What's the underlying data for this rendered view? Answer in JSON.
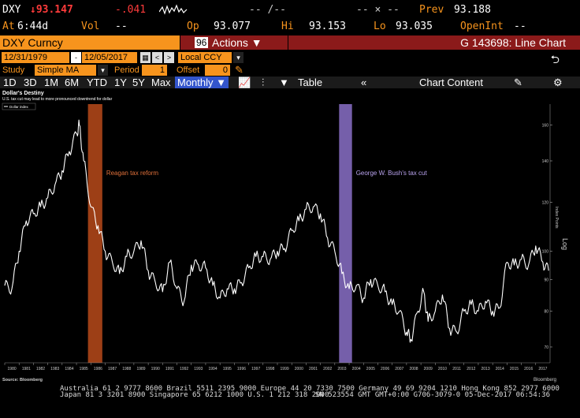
{
  "header": {
    "ticker": "DXY",
    "price": "↓93.147",
    "change": "-.041",
    "vol_label": "Vol",
    "vol_value": "--",
    "bid": "-- /--",
    "ask": "-- × --",
    "prev_label": "Prev",
    "prev_value": "93.188",
    "at_label": "At",
    "at_value": "6:44d",
    "op_label": "Op",
    "op_value": "93.077",
    "hi_label": "Hi",
    "hi_value": "93.153",
    "lo_label": "Lo",
    "lo_value": "93.035",
    "openint_label": "OpenInt",
    "openint_value": "--"
  },
  "titlebar": {
    "security": "DXY Curncy",
    "actions_num": "96",
    "actions_label": "Actions ▼",
    "chart_id": "G 143698: Line Chart"
  },
  "dates": {
    "start": "12/31/1979",
    "end": "12/05/2017",
    "currency": "Local CCY"
  },
  "study": {
    "study_label": "Study",
    "study_value": "Simple MA",
    "period_label": "Period",
    "period_value": "1",
    "offset_label": "Offset",
    "offset_value": "0"
  },
  "toolbar": {
    "ranges": [
      "1D",
      "3D",
      "1M",
      "6M",
      "YTD",
      "1Y",
      "5Y",
      "Max"
    ],
    "freq": "Monthly ▼",
    "table": "Table",
    "chart_content": "Chart Content"
  },
  "chart_data": {
    "type": "line",
    "title": "Dollar's Destiny",
    "subtitle": "U.S. tax cut may lead to more pronounced downtrend for dollar",
    "legend": "Dollar index",
    "ylabel": "Index Points",
    "scale_label": "Log",
    "source": "Source: Bloomberg",
    "ylim": [
      66,
      166
    ],
    "yticks": [
      70,
      80,
      90,
      100,
      120,
      140,
      160
    ],
    "xlim": [
      1980,
      2018
    ],
    "xticks": [
      "1980",
      "1981",
      "1982",
      "1983",
      "1984",
      "1985",
      "1986",
      "1987",
      "1988",
      "1989",
      "1990",
      "1991",
      "1992",
      "1993",
      "1994",
      "1995",
      "1996",
      "1997",
      "1998",
      "1999",
      "2000",
      "2001",
      "2002",
      "2003",
      "2004",
      "2005",
      "2006",
      "2007",
      "2008",
      "2009",
      "2010",
      "2011",
      "2012",
      "2013",
      "2014",
      "2015",
      "2016",
      "2017"
    ],
    "annotations": [
      {
        "label": "Reagan tax reform",
        "x_start": 1985.8,
        "x_end": 1986.8,
        "color": "#b84a1a"
      },
      {
        "label": "George W. Bush's tax cut",
        "x_start": 2003.3,
        "x_end": 2004.2,
        "color": "#8a70c8"
      }
    ],
    "series": [
      {
        "x": [
          1980.0,
          1980.5,
          1981.0,
          1981.5,
          1982.0,
          1982.5,
          1983.0,
          1983.5,
          1984.0,
          1984.5,
          1985.0,
          1985.2,
          1985.5,
          1986.0,
          1986.5,
          1987.0,
          1987.5,
          1988.0,
          1988.5,
          1989.0,
          1989.5,
          1990.0,
          1990.5,
          1991.0,
          1991.5,
          1992.0,
          1992.5,
          1993.0,
          1993.5,
          1994.0,
          1994.5,
          1995.0,
          1995.5,
          1996.0,
          1996.5,
          1997.0,
          1997.5,
          1998.0,
          1998.5,
          1999.0,
          1999.5,
          2000.0,
          2000.5,
          2001.0,
          2001.5,
          2002.0,
          2002.5,
          2003.0,
          2003.5,
          2004.0,
          2004.5,
          2005.0,
          2005.5,
          2006.0,
          2006.5,
          2007.0,
          2007.5,
          2008.0,
          2008.3,
          2008.8,
          2009.2,
          2009.5,
          2010.0,
          2010.5,
          2011.0,
          2011.5,
          2012.0,
          2012.5,
          2013.0,
          2013.5,
          2014.0,
          2014.5,
          2015.0,
          2015.5,
          2016.0,
          2016.5,
          2017.0,
          2017.5,
          2017.9
        ],
        "y": [
          88,
          87,
          100,
          112,
          115,
          118,
          122,
          128,
          135,
          145,
          155,
          160,
          140,
          118,
          110,
          100,
          96,
          92,
          98,
          100,
          104,
          93,
          89,
          86,
          96,
          87,
          83,
          95,
          95,
          94,
          88,
          84,
          87,
          87,
          89,
          94,
          98,
          98,
          97,
          100,
          101,
          108,
          112,
          117,
          118,
          115,
          105,
          100,
          92,
          87,
          88,
          84,
          90,
          88,
          86,
          82,
          80,
          74,
          72,
          80,
          86,
          77,
          80,
          85,
          75,
          74,
          80,
          82,
          80,
          83,
          80,
          81,
          96,
          95,
          97,
          95,
          102,
          96,
          93
        ]
      }
    ]
  },
  "footer": {
    "line1": "Australia 61 2 9777 8600  Brazil 5511 2395 9000  Europe 44 20 7330 7500  Germany 49 69 9204 1210  Hong Kong 852 2977 6000",
    "line2": "Japan 81 3 3201 8900     Singapore 65 6212 1000     U.S. 1 212 318 2000",
    "line3": "SN 523554 GMT GMT+0:00 G706-3079-0 05-Dec-2017 06:54:36",
    "brand": "Bloomberg"
  },
  "colors": {
    "accent": "#f7941d",
    "price_red": "#ff3b3b",
    "line": "#ffffff"
  }
}
